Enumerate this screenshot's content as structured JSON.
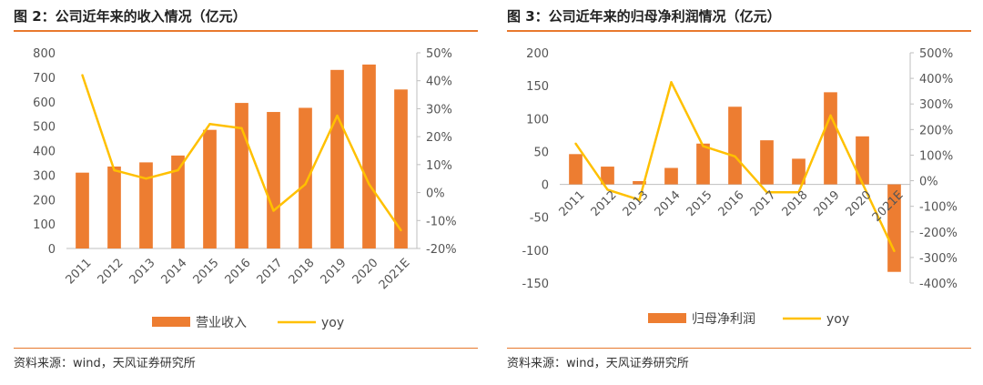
{
  "left": {
    "title": "图 2：公司近年来的收入情况（亿元）",
    "source": "资料来源：wind，天风证券研究所"
  },
  "right": {
    "title": "图 3：公司近年来的归母净利润情况（亿元）",
    "source": "资料来源：wind，天风证券研究所"
  },
  "colors": {
    "bar": "#ed7d31",
    "line": "#ffc000",
    "rule": "#e8792d"
  },
  "chart_data": [
    {
      "type": "bar",
      "title": "",
      "categories": [
        "2011",
        "2012",
        "2013",
        "2014",
        "2015",
        "2016",
        "2017",
        "2018",
        "2019",
        "2020",
        "2021E"
      ],
      "ylim": [
        0,
        800
      ],
      "yticks": [
        0,
        100,
        200,
        300,
        400,
        500,
        600,
        700,
        800
      ],
      "y2lim": [
        -0.2,
        0.5
      ],
      "y2ticks": [
        "-20%",
        "-10%",
        "0%",
        "10%",
        "20%",
        "30%",
        "40%",
        "50%"
      ],
      "series": [
        {
          "name": "营业收入",
          "type": "bar",
          "axis": "left",
          "values": [
            310,
            335,
            352,
            380,
            485,
            595,
            558,
            575,
            730,
            752,
            650
          ]
        },
        {
          "name": "yoy",
          "type": "line",
          "axis": "right",
          "values": [
            0.42,
            0.08,
            0.05,
            0.08,
            0.245,
            0.23,
            -0.065,
            0.03,
            0.275,
            0.03,
            -0.135
          ]
        }
      ]
    },
    {
      "type": "bar",
      "title": "",
      "categories": [
        "2011",
        "2012",
        "2013",
        "2014",
        "2015",
        "2016",
        "2017",
        "2018",
        "2019",
        "2020",
        "2021E"
      ],
      "ylim": [
        -150,
        200
      ],
      "yticks": [
        -150,
        -100,
        -50,
        0,
        50,
        100,
        150,
        200
      ],
      "y2lim": [
        -4,
        5
      ],
      "y2ticks": [
        "-400%",
        "-300%",
        "-200%",
        "-100%",
        "0%",
        "100%",
        "200%",
        "300%",
        "400%",
        "500%"
      ],
      "series": [
        {
          "name": "归母净利润",
          "type": "bar",
          "axis": "left",
          "values": [
            46,
            27,
            5,
            25,
            62,
            118,
            67,
            39,
            140,
            73,
            -133
          ]
        },
        {
          "name": "yoy",
          "type": "line",
          "axis": "right",
          "values": [
            1.45,
            -0.35,
            -0.75,
            3.85,
            1.35,
            0.95,
            -0.45,
            -0.45,
            2.55,
            -0.1,
            -2.75
          ]
        }
      ]
    }
  ]
}
